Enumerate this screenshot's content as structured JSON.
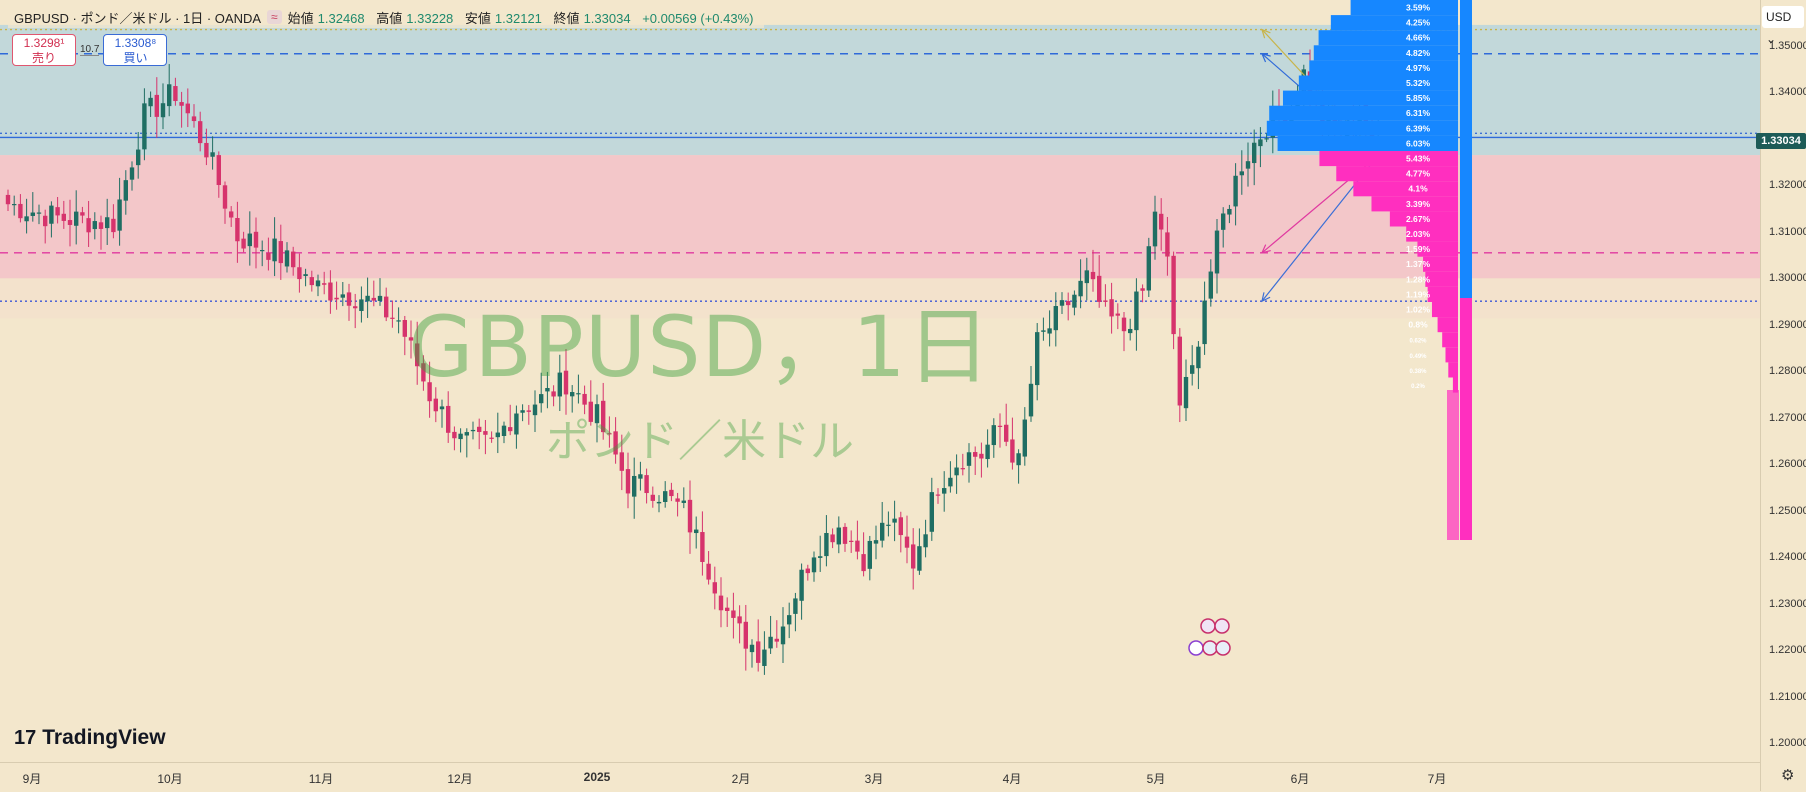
{
  "header": {
    "symbol": "GBPUSD · ポンド／米ドル · 1日 · OANDA",
    "tag": "≈",
    "open_label": "始値",
    "open": "1.32468",
    "high_label": "高値",
    "high": "1.33228",
    "low_label": "安値",
    "low": "1.32121",
    "close_label": "終値",
    "close": "1.33034",
    "change": "+0.00569 (+0.43%)"
  },
  "trade": {
    "sell_price": "1.3298¹",
    "sell_label": "売り",
    "spread": "10.7",
    "buy_price": "1.3308⁸",
    "buy_label": "買い"
  },
  "watermark": {
    "title": "GBPUSD，1日",
    "subtitle": "ポンド／米ドル"
  },
  "logo": {
    "mark": "17",
    "text": "TradingView"
  },
  "currency": "USD",
  "current_price": "1.33034",
  "colors": {
    "up": "#1f6e63",
    "down": "#d6336c",
    "buy_zone": "#1687ff",
    "sell_zone": "#ff2fbf"
  },
  "chart_data": {
    "type": "candlestick",
    "symbol": "GBPUSD",
    "interval": "1日",
    "ylim": [
      1.196,
      1.359
    ],
    "y_ticks": [
      "1.35000",
      "1.34000",
      "1.33000",
      "1.32000",
      "1.31000",
      "1.30000",
      "1.29000",
      "1.28000",
      "1.27000",
      "1.26000",
      "1.25000",
      "1.24000",
      "1.23000",
      "1.22000",
      "1.21000",
      "1.20000"
    ],
    "x_labels": [
      "9月",
      "10月",
      "11月",
      "12月",
      "2025",
      "2月",
      "3月",
      "4月",
      "5月",
      "6月",
      "7月"
    ],
    "anchors": [
      {
        "t": 0,
        "c": 1.316
      },
      {
        "t": 8,
        "c": 1.313
      },
      {
        "t": 17,
        "c": 1.312
      },
      {
        "t": 22,
        "c": 1.335
      },
      {
        "t": 27,
        "c": 1.34
      },
      {
        "t": 32,
        "c": 1.328
      },
      {
        "t": 37,
        "c": 1.309
      },
      {
        "t": 43,
        "c": 1.306
      },
      {
        "t": 50,
        "c": 1.298
      },
      {
        "t": 57,
        "c": 1.296
      },
      {
        "t": 63,
        "c": 1.291
      },
      {
        "t": 68,
        "c": 1.275
      },
      {
        "t": 73,
        "c": 1.265
      },
      {
        "t": 78,
        "c": 1.264
      },
      {
        "t": 82,
        "c": 1.272
      },
      {
        "t": 86,
        "c": 1.274
      },
      {
        "t": 90,
        "c": 1.278
      },
      {
        "t": 95,
        "c": 1.27
      },
      {
        "t": 100,
        "c": 1.256
      },
      {
        "t": 104,
        "c": 1.255
      },
      {
        "t": 109,
        "c": 1.25
      },
      {
        "t": 113,
        "c": 1.238
      },
      {
        "t": 117,
        "c": 1.225
      },
      {
        "t": 121,
        "c": 1.22
      },
      {
        "t": 125,
        "c": 1.226
      },
      {
        "t": 130,
        "c": 1.242
      },
      {
        "t": 134,
        "c": 1.247
      },
      {
        "t": 138,
        "c": 1.24
      },
      {
        "t": 142,
        "c": 1.248
      },
      {
        "t": 146,
        "c": 1.239
      },
      {
        "t": 150,
        "c": 1.256
      },
      {
        "t": 154,
        "c": 1.262
      },
      {
        "t": 157,
        "c": 1.262
      },
      {
        "t": 160,
        "c": 1.268
      },
      {
        "t": 163,
        "c": 1.26
      },
      {
        "t": 166,
        "c": 1.286
      },
      {
        "t": 170,
        "c": 1.293
      },
      {
        "t": 174,
        "c": 1.3
      },
      {
        "t": 177,
        "c": 1.292
      },
      {
        "t": 180,
        "c": 1.289
      },
      {
        "t": 183,
        "c": 1.297
      },
      {
        "t": 185,
        "c": 1.315
      },
      {
        "t": 187,
        "c": 1.303
      },
      {
        "t": 189,
        "c": 1.273
      },
      {
        "t": 191,
        "c": 1.28
      },
      {
        "t": 193,
        "c": 1.296
      },
      {
        "t": 196,
        "c": 1.313
      },
      {
        "t": 199,
        "c": 1.325
      },
      {
        "t": 203,
        "c": 1.333
      },
      {
        "t": 207,
        "c": 1.336
      },
      {
        "t": 209,
        "c": 1.344
      },
      {
        "t": 212,
        "c": 1.334
      },
      {
        "t": 215,
        "c": 1.329
      },
      {
        "t": 218,
        "c": 1.338
      },
      {
        "t": 220,
        "c": 1.3265
      },
      {
        "t": 221,
        "c": 1.3303
      }
    ],
    "horizontal_lines": [
      {
        "price": 1.3535,
        "style": "dotted",
        "color": "#c8b44a"
      },
      {
        "price": 1.3483,
        "style": "dashed",
        "color": "#2f6ad9"
      },
      {
        "price": 1.3312,
        "style": "dotted",
        "color": "#3b6fd6"
      },
      {
        "price": 1.3303,
        "style": "solid",
        "color": "#2f6ad9"
      },
      {
        "price": 1.3055,
        "style": "dashed",
        "color": "#e03aa0"
      },
      {
        "price": 1.2951,
        "style": "dotted",
        "color": "#3b56d6"
      }
    ],
    "zones": [
      {
        "from": 1.3545,
        "to": 1.3265,
        "color": "#b9d5dc"
      },
      {
        "from": 1.3265,
        "to": 1.3,
        "color": "#f2c1c8"
      }
    ],
    "projection_targets": [
      1.3535,
      1.3483,
      1.3055,
      1.2951
    ],
    "volume_profile": [
      {
        "label": "3.59%",
        "side": "buy",
        "width": 0.359
      },
      {
        "label": "4.25%",
        "side": "buy",
        "width": 0.425
      },
      {
        "label": "4.66%",
        "side": "buy",
        "width": 0.466
      },
      {
        "label": "4.82%",
        "side": "buy",
        "width": 0.482
      },
      {
        "label": "4.97%",
        "side": "buy",
        "width": 0.497
      },
      {
        "label": "5.32%",
        "side": "buy",
        "width": 0.532
      },
      {
        "label": "5.85%",
        "side": "buy",
        "width": 0.585
      },
      {
        "label": "6.31%",
        "side": "buy",
        "width": 0.631
      },
      {
        "label": "6.39%",
        "side": "buy",
        "width": 0.639
      },
      {
        "label": "6.03%",
        "side": "buy",
        "width": 0.603
      },
      {
        "label": "5.43%",
        "side": "sell",
        "width": 0.543
      },
      {
        "label": "4.77%",
        "side": "sell",
        "width": 0.477
      },
      {
        "label": "4.1%",
        "side": "sell",
        "width": 0.41
      },
      {
        "label": "3.39%",
        "side": "sell",
        "width": 0.339
      },
      {
        "label": "2.67%",
        "side": "sell",
        "width": 0.267
      },
      {
        "label": "2.03%",
        "side": "sell",
        "width": 0.203
      },
      {
        "label": "1.59%",
        "side": "sell",
        "width": 0.159
      },
      {
        "label": "1.37%",
        "side": "sell",
        "width": 0.137
      },
      {
        "label": "1.28%",
        "side": "sell",
        "width": 0.128
      },
      {
        "label": "1.19%",
        "side": "sell",
        "width": 0.119
      },
      {
        "label": "1.02%",
        "side": "sell",
        "width": 0.102
      },
      {
        "label": "0.8%",
        "side": "sell",
        "width": 0.08
      },
      {
        "label": "0.62%",
        "side": "sell",
        "width": 0.062
      },
      {
        "label": "0.49%",
        "side": "sell",
        "width": 0.049
      },
      {
        "label": "0.38%",
        "side": "sell",
        "width": 0.038
      },
      {
        "label": "0.2%",
        "side": "sell",
        "width": 0.02
      }
    ]
  }
}
